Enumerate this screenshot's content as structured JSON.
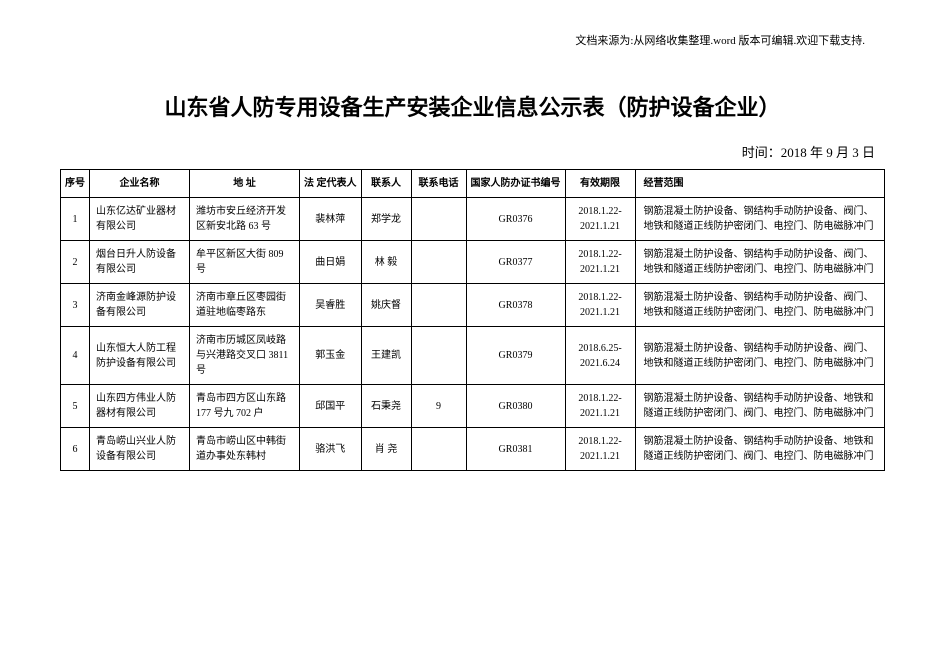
{
  "sourceNote": "文档来源为:从网络收集整理.word 版本可编辑.欢迎下载支持.",
  "title": "山东省人防专用设备生产安装企业信息公示表（防护设备企业）",
  "dateLine": "时间：2018 年 9 月 3 日",
  "columns": {
    "seq": "序号",
    "name": "企业名称",
    "addr": "地    址",
    "rep": "法 定代表人",
    "contact": "联系人",
    "phone": "联系电话",
    "cert": "国家人防办证书编号",
    "valid": "有效期限",
    "scope": "经营范围"
  },
  "rows": [
    {
      "seq": "1",
      "name": "山东亿达矿业器材有限公司",
      "addr": "潍坊市安丘经济开发区新安北路 63 号",
      "rep": "裴林萍",
      "contact": "郑学龙",
      "phone": "",
      "cert": "GR0376",
      "valid": "2018.1.22-2021.1.21",
      "scope": "钢筋混凝土防护设备、钢结构手动防护设备、阀门、地铁和隧道正线防护密闭门、电控门、防电磁脉冲门"
    },
    {
      "seq": "2",
      "name": "烟台日升人防设备有限公司",
      "addr": "牟平区新区大街 809 号",
      "rep": "曲日娟",
      "contact": "林  毅",
      "phone": "",
      "cert": "GR0377",
      "valid": "2018.1.22-2021.1.21",
      "scope": "钢筋混凝土防护设备、钢结构手动防护设备、阀门、地铁和隧道正线防护密闭门、电控门、防电磁脉冲门"
    },
    {
      "seq": "3",
      "name": "济南金峰源防护设备有限公司",
      "addr": "济南市章丘区枣园街道驻地临枣路东",
      "rep": "吴睿胜",
      "contact": "姚庆督",
      "phone": "",
      "cert": "GR0378",
      "valid": "2018.1.22-2021.1.21",
      "scope": "钢筋混凝土防护设备、钢结构手动防护设备、阀门、地铁和隧道正线防护密闭门、电控门、防电磁脉冲门"
    },
    {
      "seq": "4",
      "name": "山东恒大人防工程防护设备有限公司",
      "addr": "济南市历城区凤岐路与兴港路交叉口 3811 号",
      "rep": "郭玉金",
      "contact": "王建凯",
      "phone": "",
      "cert": "GR0379",
      "valid": "2018.6.25-2021.6.24",
      "scope": "钢筋混凝土防护设备、钢结构手动防护设备、阀门、地铁和隧道正线防护密闭门、电控门、防电磁脉冲门"
    },
    {
      "seq": "5",
      "name": "山东四方伟业人防器材有限公司",
      "addr": "青岛市四方区山东路177 号九 702 户",
      "rep": "邱国平",
      "contact": "石秉尧",
      "phone": "9",
      "cert": "GR0380",
      "valid": "2018.1.22-2021.1.21",
      "scope": "钢筋混凝土防护设备、钢结构手动防护设备、地铁和隧道正线防护密闭门、阀门、电控门、防电磁脉冲门"
    },
    {
      "seq": "6",
      "name": "青岛崂山兴业人防设备有限公司",
      "addr": "青岛市崂山区中韩街道办事处东韩村",
      "rep": "骆洪飞",
      "contact": "肖  尧",
      "phone": "",
      "cert": "GR0381",
      "valid": "2018.1.22-2021.1.21",
      "scope": "钢筋混凝土防护设备、钢结构手动防护设备、地铁和隧道正线防护密闭门、阀门、电控门、防电磁脉冲门"
    }
  ]
}
